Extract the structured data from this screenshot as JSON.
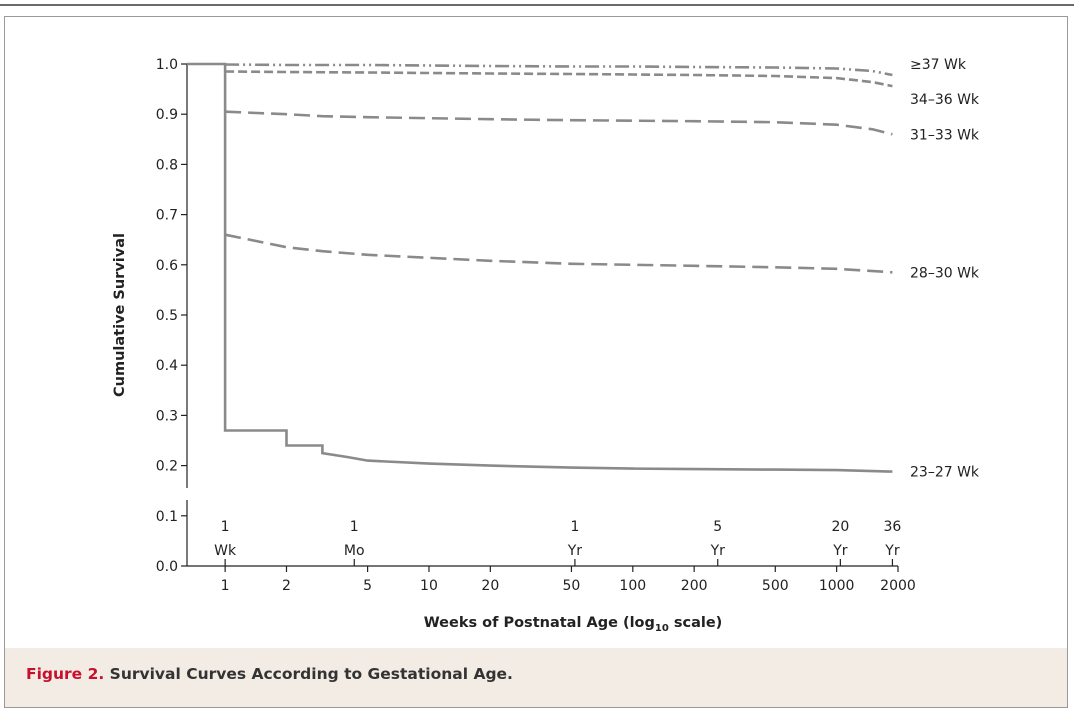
{
  "figure": {
    "label": "Figure 2.",
    "caption": "Survival Curves According to Gestational Age."
  },
  "colors": {
    "curve": "#8a8a8a",
    "axis": "#222222",
    "caption_label": "#c8102e",
    "caption_background": "#f3ece5"
  },
  "chart_data": {
    "type": "line",
    "title": "",
    "xlabel": "Weeks of Postnatal Age (log",
    "xlabel_subscript": "10",
    "xlabel_suffix": " scale)",
    "ylabel": "Cumulative Survival",
    "x_scale": "log10",
    "xlim": [
      0.65,
      2000
    ],
    "ylim": [
      0.0,
      1.0
    ],
    "x_ticks": [
      1,
      2,
      5,
      10,
      20,
      50,
      100,
      200,
      500,
      1000,
      2000
    ],
    "y_ticks": [
      "0.0",
      "0.1",
      "0.2",
      "0.3",
      "0.4",
      "0.5",
      "0.6",
      "0.7",
      "0.8",
      "0.9",
      "1.0"
    ],
    "time_markers": [
      {
        "x": 1,
        "top": "1",
        "bottom": "Wk"
      },
      {
        "x": 4.3,
        "top": "1",
        "bottom": "Mo"
      },
      {
        "x": 52,
        "top": "1",
        "bottom": "Yr"
      },
      {
        "x": 261,
        "top": "5",
        "bottom": "Yr"
      },
      {
        "x": 1043,
        "top": "20",
        "bottom": "Yr"
      },
      {
        "x": 1878,
        "top": "36",
        "bottom": "Yr"
      }
    ],
    "grid": false,
    "legend": "direct labels at right end of each curve",
    "series": [
      {
        "name": "≥37 Wk",
        "style": "dash-dot-dot",
        "x": [
          1,
          2,
          5,
          10,
          20,
          50,
          100,
          200,
          500,
          1000,
          1500,
          1878
        ],
        "y": [
          0.999,
          0.998,
          0.998,
          0.997,
          0.996,
          0.995,
          0.995,
          0.994,
          0.993,
          0.991,
          0.986,
          0.978
        ]
      },
      {
        "name": "34–36 Wk",
        "style": "short-dash",
        "x": [
          1,
          2,
          5,
          10,
          20,
          50,
          100,
          200,
          500,
          1000,
          1500,
          1878
        ],
        "y": [
          0.985,
          0.984,
          0.983,
          0.982,
          0.981,
          0.98,
          0.979,
          0.978,
          0.976,
          0.972,
          0.964,
          0.956
        ]
      },
      {
        "name": "31–33 Wk",
        "style": "long-dash",
        "x": [
          1,
          2,
          3,
          5,
          10,
          20,
          50,
          100,
          200,
          500,
          1000,
          1500,
          1878
        ],
        "y": [
          0.905,
          0.9,
          0.896,
          0.894,
          0.892,
          0.89,
          0.888,
          0.887,
          0.886,
          0.884,
          0.879,
          0.87,
          0.86
        ]
      },
      {
        "name": "28–30 Wk",
        "style": "long-dash",
        "x": [
          1,
          2,
          3,
          5,
          10,
          20,
          50,
          100,
          200,
          500,
          1000,
          1878
        ],
        "y": [
          0.66,
          0.635,
          0.627,
          0.62,
          0.614,
          0.608,
          0.602,
          0.6,
          0.598,
          0.595,
          0.592,
          0.585
        ]
      },
      {
        "name": "23–27 Wk",
        "style": "solid",
        "x": [
          0.65,
          1,
          1,
          2,
          2,
          3,
          3,
          4,
          5,
          10,
          20,
          50,
          100,
          200,
          500,
          1000,
          1878
        ],
        "y": [
          1.0,
          1.0,
          0.27,
          0.27,
          0.24,
          0.24,
          0.225,
          0.217,
          0.21,
          0.204,
          0.2,
          0.196,
          0.194,
          0.193,
          0.192,
          0.191,
          0.188
        ]
      }
    ]
  }
}
